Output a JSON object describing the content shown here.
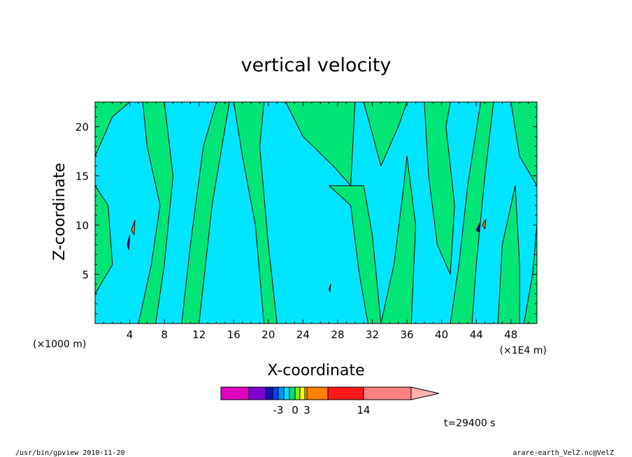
{
  "chart_data": {
    "type": "heatmap",
    "title": "vertical velocity",
    "xlabel": "X-coordinate",
    "ylabel": "Z-coordinate",
    "x_unit_left": "(×1000 m)",
    "x_unit_right": "(×1E4 m)",
    "x_ticks": [
      "4",
      "8",
      "12",
      "16",
      "20",
      "24",
      "28",
      "32",
      "36",
      "40",
      "44",
      "48"
    ],
    "x_tick_values": [
      4,
      8,
      12,
      16,
      20,
      24,
      28,
      32,
      36,
      40,
      44,
      48
    ],
    "y_ticks": [
      "5",
      "10",
      "15",
      "20"
    ],
    "y_tick_values": [
      5,
      10,
      15,
      20
    ],
    "xlim": [
      0,
      51
    ],
    "ylim": [
      0,
      22.5
    ],
    "background_color": "#00e5ff",
    "regions": [
      {
        "color": "#00e676",
        "band": [
          -3,
          0
        ],
        "cells": [
          [
            [
              0,
              17
            ],
            [
              2,
              21
            ],
            [
              4,
              22.5
            ],
            [
              0,
              22.5
            ]
          ],
          [
            [
              0,
              3
            ],
            [
              2,
              6
            ],
            [
              1.5,
              12
            ],
            [
              0,
              14
            ]
          ],
          [
            [
              5,
              0
            ],
            [
              6.5,
              6
            ],
            [
              7.5,
              12
            ],
            [
              6,
              18
            ],
            [
              5.5,
              22.5
            ],
            [
              8,
              22.5
            ],
            [
              9,
              15
            ],
            [
              8,
              6
            ],
            [
              7,
              0
            ]
          ],
          [
            [
              10,
              0
            ],
            [
              11,
              8
            ],
            [
              12.5,
              18
            ],
            [
              14,
              22.5
            ],
            [
              15.5,
              22.5
            ],
            [
              13.5,
              12
            ],
            [
              12,
              0
            ]
          ],
          [
            [
              16,
              22.5
            ],
            [
              17,
              17
            ],
            [
              18.5,
              10
            ],
            [
              19.5,
              0
            ],
            [
              21,
              0
            ],
            [
              20,
              8
            ],
            [
              19,
              18
            ],
            [
              19.5,
              22.5
            ]
          ],
          [
            [
              22,
              22.5
            ],
            [
              24,
              19
            ],
            [
              27.5,
              16
            ],
            [
              29.5,
              14
            ],
            [
              30,
              22.5
            ]
          ],
          [
            [
              27,
              14
            ],
            [
              29.5,
              12
            ],
            [
              30.5,
              5
            ],
            [
              31.5,
              0
            ],
            [
              33,
              0
            ],
            [
              32,
              9
            ],
            [
              31,
              14
            ]
          ],
          [
            [
              31,
              22.5
            ],
            [
              33,
              16
            ],
            [
              35,
              20
            ],
            [
              36,
              22.5
            ]
          ],
          [
            [
              33,
              0
            ],
            [
              34.5,
              6
            ],
            [
              35.5,
              13
            ],
            [
              36,
              17
            ],
            [
              37,
              10
            ],
            [
              36.5,
              0
            ]
          ],
          [
            [
              38,
              22.5
            ],
            [
              38.5,
              15
            ],
            [
              39.5,
              8
            ],
            [
              41,
              5
            ],
            [
              41.5,
              12
            ],
            [
              40.5,
              20
            ],
            [
              41,
              22.5
            ]
          ],
          [
            [
              41,
              0
            ],
            [
              42,
              6
            ],
            [
              43,
              14
            ],
            [
              44.5,
              22.5
            ],
            [
              46,
              22.5
            ],
            [
              45,
              15
            ],
            [
              44,
              6
            ],
            [
              43.5,
              0
            ]
          ],
          [
            [
              46.5,
              0
            ],
            [
              47,
              8
            ],
            [
              48.5,
              14
            ],
            [
              49,
              6
            ],
            [
              49,
              0
            ]
          ],
          [
            [
              48,
              22.5
            ],
            [
              49,
              17
            ],
            [
              51,
              14
            ],
            [
              51,
              22.5
            ]
          ],
          [
            [
              49.5,
              0
            ],
            [
              50.5,
              5
            ],
            [
              51,
              10
            ],
            [
              51,
              0
            ]
          ]
        ]
      },
      {
        "color": "#ff7f00",
        "band": [
          6,
          9
        ],
        "cells": [
          [
            [
              4.2,
              9.5
            ],
            [
              4.6,
              10.5
            ],
            [
              4.5,
              9.0
            ]
          ],
          [
            [
              44.7,
              10.0
            ],
            [
              45.1,
              10.6
            ],
            [
              45.0,
              9.6
            ]
          ]
        ]
      },
      {
        "color": "#0000c8",
        "band": [
          -9,
          -6
        ],
        "cells": [
          [
            [
              3.7,
              8.0
            ],
            [
              4.0,
              9.0
            ],
            [
              3.9,
              7.5
            ]
          ],
          [
            [
              44.0,
              9.5
            ],
            [
              44.4,
              10.2
            ],
            [
              44.3,
              9.3
            ]
          ],
          [
            [
              27.0,
              3.5
            ],
            [
              27.2,
              4.0
            ],
            [
              27.1,
              3.2
            ]
          ]
        ]
      }
    ],
    "colorbar": {
      "labels": [
        "-3",
        "0",
        "3",
        "14"
      ],
      "label_values": [
        -3,
        0,
        3,
        14
      ],
      "segments": [
        {
          "from": -12,
          "to": -8,
          "color": "#e000c0"
        },
        {
          "from": -8,
          "to": -5,
          "color": "#8000d0"
        },
        {
          "from": -5,
          "to": -4,
          "color": "#1010b0"
        },
        {
          "from": -4,
          "to": -3,
          "color": "#0040ff"
        },
        {
          "from": -3,
          "to": -2,
          "color": "#0090ff"
        },
        {
          "from": -2,
          "to": -1,
          "color": "#00d8ff"
        },
        {
          "from": -1,
          "to": 0,
          "color": "#00e070"
        },
        {
          "from": 0,
          "to": 1,
          "color": "#80f000"
        },
        {
          "from": 1,
          "to": 2,
          "color": "#ffff00"
        },
        {
          "from": 2,
          "to": 3,
          "color": "#ffc000"
        },
        {
          "from": 3,
          "to": 6,
          "color": "#ff7f00"
        },
        {
          "from": 6,
          "to": 14,
          "color": "#ff1a1a"
        },
        {
          "from": 14,
          "to": 28,
          "color": "#ff8080"
        },
        {
          "from": 28,
          "to": 34,
          "color": "#ffb0b0"
        }
      ]
    },
    "time_label": "t=29400 s",
    "footer_left": "/usr/bin/gpview   2010-11-20",
    "footer_right": "arare-earth_VelZ.nc@VelZ"
  }
}
